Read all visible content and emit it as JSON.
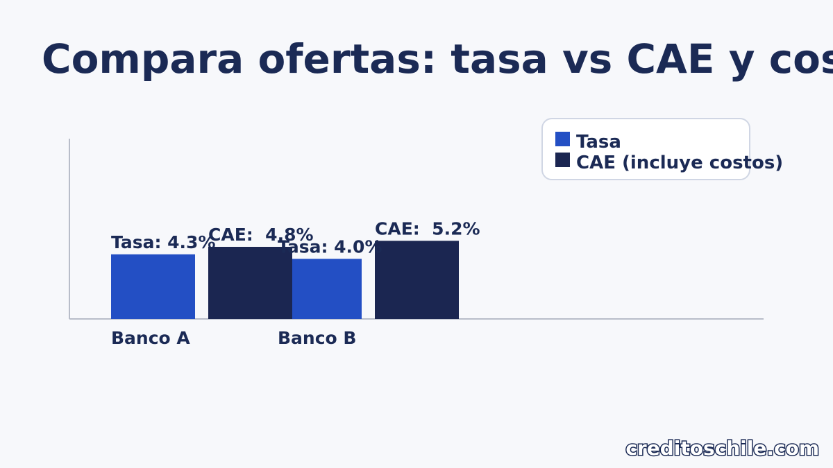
{
  "chart_data": {
    "type": "bar",
    "title": "Compara ofertas: tasa vs CAE y costos",
    "categories": [
      "Banco A",
      "Banco B"
    ],
    "series": [
      {
        "name": "Tasa",
        "color": "#234fc4",
        "values": [
          4.3,
          4.0
        ],
        "value_labels": [
          "Tasa: 4.3%",
          "Tasa: 4.0%"
        ]
      },
      {
        "name": "CAE (incluye costos)",
        "color": "#1b2651",
        "values": [
          4.8,
          5.2
        ],
        "value_labels": [
          "CAE:  4.8%",
          "CAE:  5.2%"
        ]
      }
    ],
    "ylim": [
      0,
      12
    ],
    "legend": "upper right",
    "watermark": "creditoschile.com"
  }
}
